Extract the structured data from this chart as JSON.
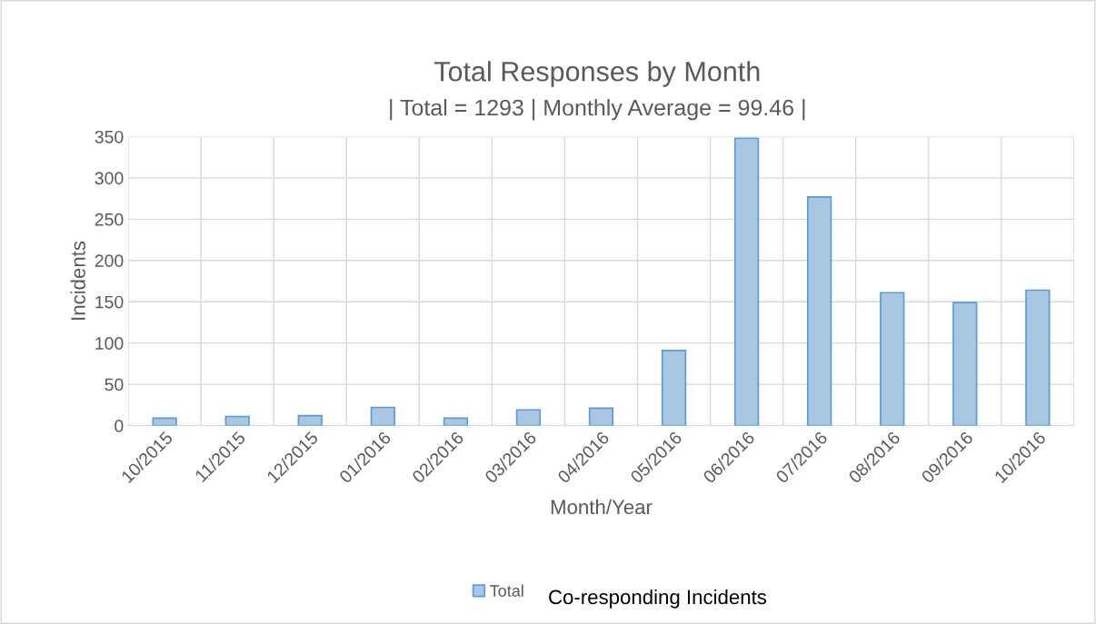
{
  "chart_data": {
    "type": "bar",
    "title": "Total Responses by Month",
    "subtitle": "| Total = 1293 | Monthly Average = 99.46 |",
    "xlabel": "Month/Year",
    "ylabel": "Incidents",
    "categories": [
      "10/2015",
      "11/2015",
      "12/2015",
      "01/2016",
      "02/2016",
      "03/2016",
      "04/2016",
      "05/2016",
      "06/2016",
      "07/2016",
      "08/2016",
      "09/2016",
      "10/2016"
    ],
    "series": [
      {
        "name": "Total",
        "color": "#a9c6e2",
        "values": [
          9,
          11,
          12,
          22,
          9,
          19,
          21,
          91,
          348,
          277,
          161,
          149,
          164
        ]
      }
    ],
    "ylim": [
      0,
      350
    ],
    "yticks": [
      0,
      50,
      100,
      150,
      200,
      250,
      300,
      350
    ],
    "grid": true,
    "legend": "bottom",
    "annotations": [
      "Co-responding Incidents"
    ]
  }
}
